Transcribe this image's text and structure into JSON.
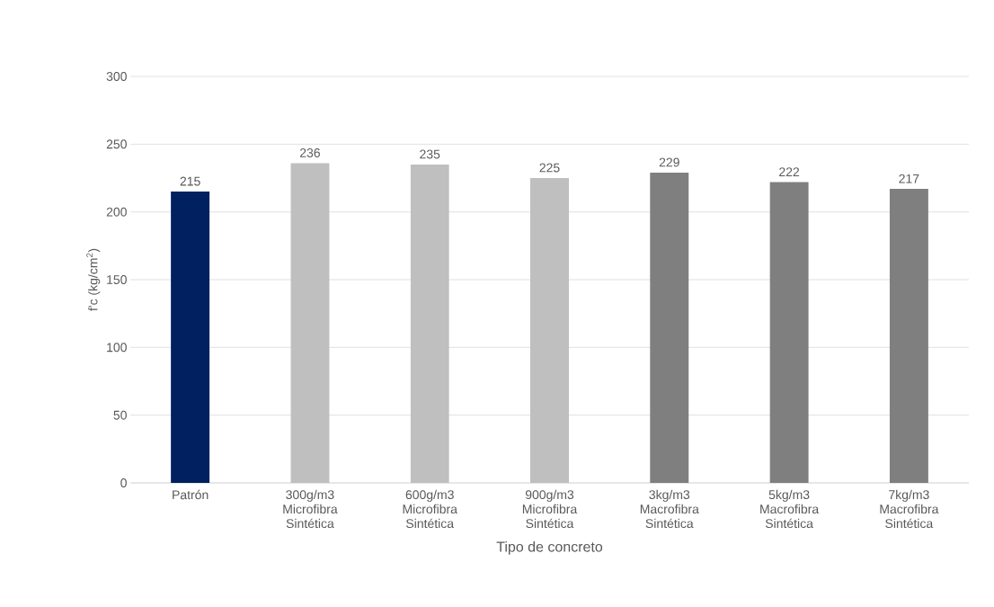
{
  "chart_data": {
    "type": "bar",
    "xlabel": "Tipo de concreto",
    "ylabel": "f'c (kg/cm$^{2}$)",
    "categories": [
      "Patrón",
      "300g/m3 Microfibra Sintética",
      "600g/m3 Microfibra Sintética",
      "900g/m3 Microfibra Sintética",
      "3kg/m3 Macrofibra Sintética",
      "5kg/m3 Macrofibra Sintética",
      "7kg/m3 Macrofibra Sintética"
    ],
    "values": [
      215,
      236,
      235,
      225,
      229,
      222,
      217
    ],
    "colors": [
      "#002060",
      "#bfbfbf",
      "#bfbfbf",
      "#bfbfbf",
      "#7f7f7f",
      "#7f7f7f",
      "#7f7f7f"
    ],
    "ylim": [
      0,
      300
    ],
    "yticks": [
      0,
      50,
      100,
      150,
      200,
      250,
      300
    ],
    "grid": "y",
    "data_labels": true
  }
}
